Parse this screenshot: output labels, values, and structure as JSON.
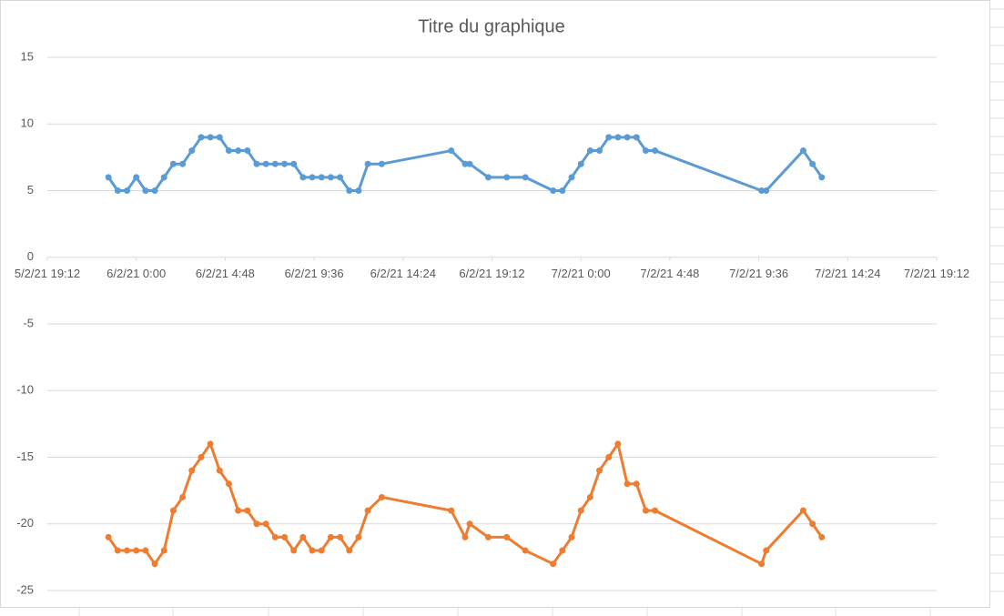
{
  "chart_data": {
    "type": "line",
    "title": "Titre du graphique",
    "x": [
      44232.9375,
      44232.95833,
      44232.97917,
      44233,
      44233.02083,
      44233.04167,
      44233.0625,
      44233.08333,
      44233.10417,
      44233.125,
      44233.14583,
      44233.16667,
      44233.1875,
      44233.20833,
      44233.22917,
      44233.25,
      44233.27083,
      44233.29167,
      44233.3125,
      44233.33333,
      44233.35417,
      44233.375,
      44233.39583,
      44233.41667,
      44233.4375,
      44233.45833,
      44233.47917,
      44233.5,
      44233.52083,
      44233.55208,
      44233.70833,
      44233.73958,
      44233.75,
      44233.79167,
      44233.83333,
      44233.875,
      44233.9375,
      44233.95833,
      44233.97917,
      44234,
      44234.02083,
      44234.04167,
      44234.0625,
      44234.08333,
      44234.10417,
      44234.125,
      44234.14583,
      44234.16667,
      44234.40625,
      44234.41667,
      44234.5,
      44234.52083,
      44234.54167
    ],
    "series": [
      {
        "color": "#5b9bd5",
        "values": [
          6,
          5,
          5,
          6,
          5,
          5,
          6,
          7,
          7,
          8,
          9,
          9,
          9,
          8,
          8,
          8,
          7,
          7,
          7,
          7,
          7,
          6,
          6,
          6,
          6,
          6,
          5,
          5,
          7,
          7,
          8,
          7,
          7,
          6,
          6,
          6,
          5,
          5,
          6,
          7,
          8,
          8,
          9,
          9,
          9,
          9,
          8,
          8,
          5,
          5,
          8,
          7,
          6
        ]
      },
      {
        "color": "#ed7d31",
        "values": [
          -21,
          -22,
          -22,
          -22,
          -22,
          -23,
          -22,
          -19,
          -18,
          -16,
          -15,
          -14,
          -16,
          -17,
          -19,
          -19,
          -20,
          -20,
          -21,
          -21,
          -22,
          -21,
          -22,
          -22,
          -21,
          -21,
          -22,
          -21,
          -19,
          -18,
          -19,
          -21,
          -20,
          -21,
          -21,
          -22,
          -23,
          -22,
          -21,
          -19,
          -18,
          -16,
          -15,
          -14,
          -17,
          -17,
          -19,
          -19,
          -23,
          -22,
          -19,
          -20,
          -21
        ]
      }
    ],
    "xlim": [
      44232.8,
      44234.8
    ],
    "xticks": [
      {
        "value": 44232.8,
        "label": "5/2/21 19:12"
      },
      {
        "value": 44233.0,
        "label": "6/2/21 0:00"
      },
      {
        "value": 44233.2,
        "label": "6/2/21 4:48"
      },
      {
        "value": 44233.4,
        "label": "6/2/21 9:36"
      },
      {
        "value": 44233.6,
        "label": "6/2/21 14:24"
      },
      {
        "value": 44233.8,
        "label": "6/2/21 19:12"
      },
      {
        "value": 44234.0,
        "label": "7/2/21 0:00"
      },
      {
        "value": 44234.2,
        "label": "7/2/21 4:48"
      },
      {
        "value": 44234.4,
        "label": "7/2/21 9:36"
      },
      {
        "value": 44234.6,
        "label": "7/2/21 14:24"
      },
      {
        "value": 44234.8,
        "label": "7/2/21 19:12"
      }
    ],
    "ylim": [
      -25,
      15
    ],
    "yticks": [
      -25,
      -20,
      -15,
      -10,
      -5,
      0,
      5,
      10,
      15
    ],
    "grid": true
  }
}
